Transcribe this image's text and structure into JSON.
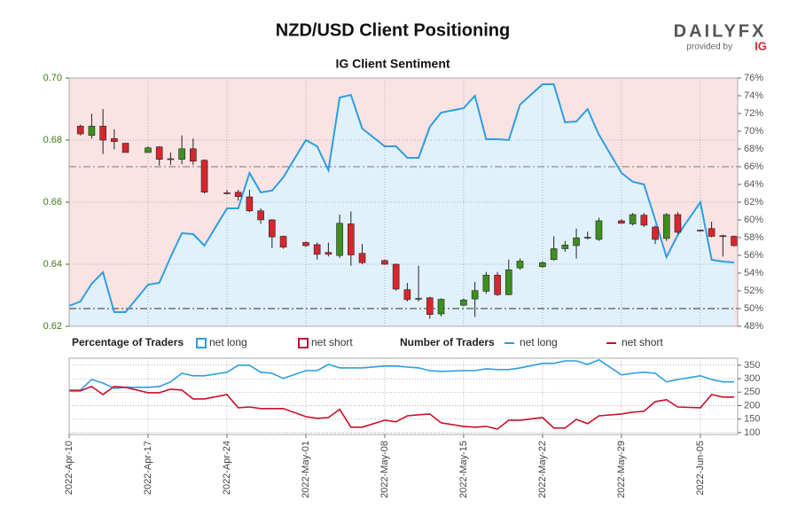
{
  "header": {
    "logo": "DAILYFX",
    "provided_by": "provided by",
    "brand": "IG"
  },
  "chart_data": [
    {
      "type": "candlestick",
      "title": "NZD/USD Client Positioning",
      "subtitle": "IG Client Sentiment",
      "legend": {
        "title": "Percentage of Traders",
        "entries": [
          {
            "name": "net long",
            "color": "#2d9ee0"
          },
          {
            "name": "net short",
            "color": "#c8102e"
          }
        ]
      },
      "x": [
        "2022-04-10",
        "2022-04-11",
        "2022-04-12",
        "2022-04-13",
        "2022-04-14",
        "2022-04-15",
        "2022-04-17",
        "2022-04-18",
        "2022-04-19",
        "2022-04-20",
        "2022-04-21",
        "2022-04-22",
        "2022-04-24",
        "2022-04-25",
        "2022-04-26",
        "2022-04-27",
        "2022-04-28",
        "2022-04-29",
        "2022-05-01",
        "2022-05-02",
        "2022-05-03",
        "2022-05-04",
        "2022-05-05",
        "2022-05-06",
        "2022-05-08",
        "2022-05-09",
        "2022-05-10",
        "2022-05-11",
        "2022-05-12",
        "2022-05-13",
        "2022-05-15",
        "2022-05-16",
        "2022-05-17",
        "2022-05-18",
        "2022-05-19",
        "2022-05-20",
        "2022-05-22",
        "2022-05-23",
        "2022-05-24",
        "2022-05-25",
        "2022-05-26",
        "2022-05-27",
        "2022-05-29",
        "2022-05-30",
        "2022-05-31",
        "2022-06-01",
        "2022-06-02",
        "2022-06-03",
        "2022-06-05",
        "2022-06-06",
        "2022-06-07",
        "2022-06-08"
      ],
      "open": [
        null,
        0.6845,
        0.6815,
        0.6845,
        0.6805,
        0.679,
        0.676,
        0.6778,
        0.674,
        0.6738,
        0.6772,
        0.6735,
        0.663,
        0.6632,
        0.6617,
        0.6572,
        0.6543,
        0.649,
        0.647,
        0.6463,
        0.6438,
        0.6428,
        0.653,
        0.6435,
        0.6412,
        0.64,
        0.6318,
        0.6288,
        0.6292,
        0.624,
        0.6268,
        0.6288,
        0.6313,
        0.6365,
        0.6302,
        0.6388,
        0.6392,
        0.6415,
        0.645,
        0.646,
        0.6485,
        0.648,
        0.654,
        0.653,
        0.6558,
        0.652,
        0.6483,
        0.656,
        0.651,
        0.6515,
        0.6492,
        0.649
      ],
      "high": [
        null,
        0.685,
        0.6885,
        0.69,
        0.6835,
        0.679,
        0.678,
        0.678,
        0.676,
        0.6815,
        0.6805,
        0.6738,
        0.664,
        0.664,
        0.664,
        0.658,
        0.6545,
        0.6492,
        0.6473,
        0.647,
        0.647,
        0.656,
        0.657,
        0.6465,
        0.6415,
        0.6402,
        0.634,
        0.6395,
        0.6295,
        0.629,
        0.629,
        0.6343,
        0.6375,
        0.6375,
        0.6415,
        0.6418,
        0.641,
        0.649,
        0.6475,
        0.6515,
        0.6505,
        0.655,
        0.6545,
        0.6565,
        0.6565,
        0.6525,
        0.6565,
        0.6568,
        0.6512,
        0.6537,
        0.6495,
        0.6492
      ],
      "low": [
        null,
        0.6815,
        0.6805,
        0.6755,
        0.677,
        0.676,
        0.676,
        0.6718,
        0.672,
        0.6722,
        0.672,
        0.6628,
        0.6625,
        0.6605,
        0.6568,
        0.653,
        0.6452,
        0.645,
        0.6455,
        0.6415,
        0.6425,
        0.642,
        0.6395,
        0.64,
        0.6398,
        0.6315,
        0.628,
        0.628,
        0.6225,
        0.6232,
        0.6265,
        0.623,
        0.6305,
        0.6298,
        0.63,
        0.6382,
        0.6388,
        0.6412,
        0.644,
        0.6418,
        0.648,
        0.6475,
        0.653,
        0.6525,
        0.652,
        0.6465,
        0.6475,
        0.6498,
        0.6505,
        0.6487,
        0.6425,
        0.6458
      ],
      "close": [
        null,
        0.682,
        0.6845,
        0.68,
        0.6795,
        0.676,
        0.6775,
        0.6738,
        0.6738,
        0.6772,
        0.6732,
        0.6632,
        0.6628,
        0.6618,
        0.6572,
        0.6543,
        0.6488,
        0.6455,
        0.646,
        0.6432,
        0.6432,
        0.6532,
        0.643,
        0.6405,
        0.64,
        0.632,
        0.6286,
        0.629,
        0.6238,
        0.6287,
        0.6285,
        0.6315,
        0.6365,
        0.6302,
        0.6382,
        0.641,
        0.6405,
        0.645,
        0.6462,
        0.6485,
        0.6487,
        0.654,
        0.6532,
        0.656,
        0.6526,
        0.648,
        0.656,
        0.6503,
        0.6508,
        0.649,
        0.649,
        0.646
      ],
      "up_color": "#3f8f1f",
      "down_color": "#d7262e",
      "series": [
        {
          "name": "net long",
          "color": "#2d9ee0",
          "axis": "y2",
          "values": [
            50.3,
            50.8,
            52.8,
            54.1,
            49.6,
            49.6,
            52.7,
            52.9,
            55.8,
            58.5,
            58.4,
            57.1,
            61.3,
            61.3,
            65.3,
            63.1,
            63.3,
            64.8,
            69.0,
            68.3,
            65.6,
            73.8,
            74.1,
            70.3,
            68.3,
            68.3,
            67.0,
            67.0,
            70.5,
            72.1,
            72.6,
            74.0,
            69.1,
            69.1,
            69.0,
            73.0,
            75.3,
            75.3,
            71.0,
            71.1,
            72.5,
            69.6,
            65.3,
            64.3,
            64.0,
            60.0,
            55.8,
            58.3,
            62.0,
            55.5,
            55.3,
            55.2
          ]
        }
      ],
      "xlim": [
        "2022-04-10",
        "2022-06-08"
      ],
      "ylim": [
        0.62,
        0.7
      ],
      "yticks": [
        0.62,
        0.64,
        0.66,
        0.68,
        {
          "value": 0.7,
          "label": "0.70"
        }
      ],
      "y2lim": [
        48,
        76
      ],
      "y2ticks": [
        {
          "value": 48,
          "label": "48%"
        },
        {
          "value": 50,
          "label": "50%"
        },
        {
          "value": 52,
          "label": "52%"
        },
        {
          "value": 54,
          "label": "54%"
        },
        {
          "value": 56,
          "label": "56%"
        },
        {
          "value": 58,
          "label": "58%"
        },
        {
          "value": 60,
          "label": "60%"
        },
        {
          "value": 62,
          "label": "62%"
        },
        {
          "value": 64,
          "label": "64%"
        },
        {
          "value": 66,
          "label": "66%"
        },
        {
          "value": 68,
          "label": "68%"
        },
        {
          "value": 70,
          "label": "70%"
        },
        {
          "value": 72,
          "label": "72%"
        },
        {
          "value": 74,
          "label": "74%"
        },
        {
          "value": 76,
          "label": "76%"
        }
      ],
      "grid": true
    },
    {
      "type": "line",
      "legend_title": "Number of Traders",
      "x": [
        "2022-04-10",
        "2022-04-11",
        "2022-04-12",
        "2022-04-13",
        "2022-04-14",
        "2022-04-15",
        "2022-04-17",
        "2022-04-18",
        "2022-04-19",
        "2022-04-20",
        "2022-04-21",
        "2022-04-22",
        "2022-04-24",
        "2022-04-25",
        "2022-04-26",
        "2022-04-27",
        "2022-04-28",
        "2022-04-29",
        "2022-05-01",
        "2022-05-02",
        "2022-05-03",
        "2022-05-04",
        "2022-05-05",
        "2022-05-06",
        "2022-05-08",
        "2022-05-09",
        "2022-05-10",
        "2022-05-11",
        "2022-05-12",
        "2022-05-13",
        "2022-05-15",
        "2022-05-16",
        "2022-05-17",
        "2022-05-18",
        "2022-05-19",
        "2022-05-20",
        "2022-05-22",
        "2022-05-23",
        "2022-05-24",
        "2022-05-25",
        "2022-05-26",
        "2022-05-27",
        "2022-05-29",
        "2022-05-30",
        "2022-05-31",
        "2022-06-01",
        "2022-06-02",
        "2022-06-03",
        "2022-06-05",
        "2022-06-06",
        "2022-06-07",
        "2022-06-08"
      ],
      "series": [
        {
          "name": "net long",
          "color": "#2d9ee0",
          "values": [
            258,
            258,
            297,
            284,
            264,
            268,
            268,
            271,
            288,
            320,
            311,
            311,
            324,
            350,
            350,
            324,
            320,
            301,
            330,
            330,
            353,
            340,
            340,
            340,
            347,
            347,
            343,
            340,
            330,
            327,
            330,
            330,
            337,
            334,
            334,
            340,
            357,
            357,
            366,
            366,
            353,
            370,
            314,
            320,
            324,
            320,
            288,
            297,
            311,
            297,
            288,
            288
          ]
        },
        {
          "name": "net short",
          "color": "#c8102e",
          "values": [
            255,
            255,
            271,
            241,
            271,
            268,
            248,
            248,
            261,
            258,
            225,
            225,
            241,
            192,
            195,
            189,
            189,
            189,
            159,
            153,
            156,
            186,
            120,
            120,
            146,
            140,
            162,
            166,
            169,
            136,
            123,
            120,
            123,
            113,
            146,
            146,
            156,
            117,
            117,
            149,
            133,
            162,
            169,
            176,
            179,
            215,
            222,
            195,
            192,
            241,
            232,
            232
          ]
        }
      ],
      "xlim": [
        "2022-04-10",
        "2022-06-08"
      ],
      "xticks": [
        {
          "value": "2022-04-10",
          "label": "2022-Apr-10"
        },
        {
          "value": "2022-04-17",
          "label": "2022-Apr-17"
        },
        {
          "value": "2022-04-24",
          "label": "2022-Apr-24"
        },
        {
          "value": "2022-05-01",
          "label": "2022-May-01"
        },
        {
          "value": "2022-05-08",
          "label": "2022-May-08"
        },
        {
          "value": "2022-05-15",
          "label": "2022-May-15"
        },
        {
          "value": "2022-05-22",
          "label": "2022-May-22"
        },
        {
          "value": "2022-05-29",
          "label": "2022-May-29"
        },
        {
          "value": "2022-06-05",
          "label": "2022-Jun-05"
        }
      ],
      "ylim": [
        93,
        376
      ],
      "yticks": [
        100,
        150,
        200,
        250,
        300,
        350
      ],
      "yaxis_side": "right",
      "grid": true
    }
  ]
}
